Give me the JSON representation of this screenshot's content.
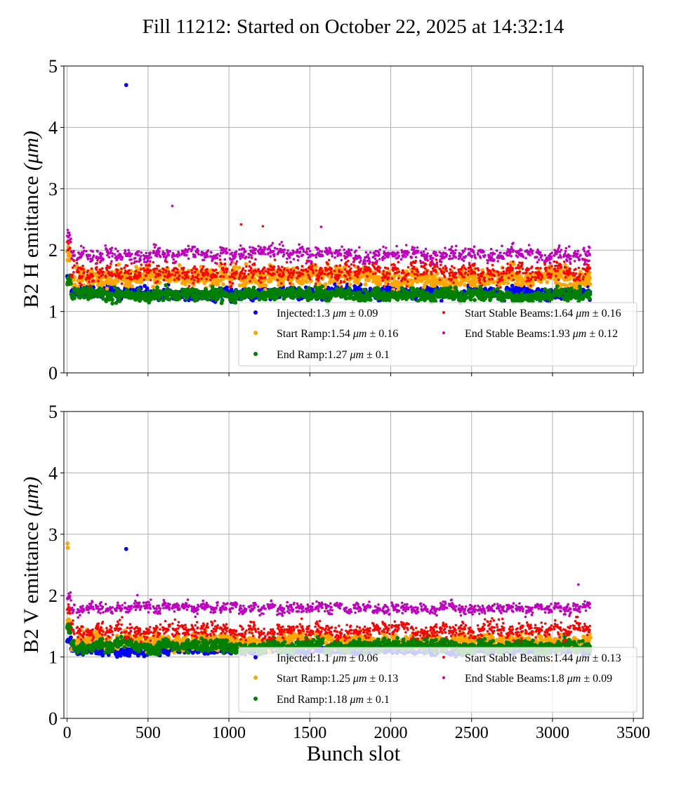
{
  "title": "Fill 11212: Started on October 22, 2025 at 14:32:14",
  "colors": {
    "injected": "#0000ff",
    "start_ramp": "#ffa500",
    "end_ramp": "#008000",
    "start_stable": "#ff0000",
    "end_stable": "#bf00bf",
    "grid": "#b0b0b0"
  },
  "chart_data": [
    {
      "type": "scatter",
      "ylabel": "B2 H emittance",
      "yunit": "(μm)",
      "xlabel": "",
      "xlim": [
        -20,
        3560
      ],
      "ylim": [
        0,
        5
      ],
      "xticks": [
        0,
        500,
        1000,
        1500,
        2000,
        2500,
        3000,
        3500
      ],
      "yticks": [
        0,
        1,
        2,
        3,
        4,
        5
      ],
      "show_xticklabels": false,
      "grid": true,
      "legend_placement": "lower-right",
      "legend_columns": 2,
      "series": [
        {
          "name": "Injected:1.3 μm ± 0.09",
          "color_key": "injected",
          "mean": 1.3,
          "std": 0.09,
          "marker": "large",
          "outliers": [
            {
              "x": 365,
              "y": 4.69
            }
          ]
        },
        {
          "name": "Start Ramp:1.54 μm ± 0.16",
          "color_key": "start_ramp",
          "mean": 1.54,
          "std": 0.16,
          "marker": "large",
          "outliers": []
        },
        {
          "name": "End Ramp:1.27 μm ± 0.1",
          "color_key": "end_ramp",
          "mean": 1.27,
          "std": 0.1,
          "marker": "large",
          "outliers": []
        },
        {
          "name": "Start Stable Beams:1.64 μm ± 0.16",
          "color_key": "start_stable",
          "mean": 1.64,
          "std": 0.16,
          "marker": "small",
          "outliers": [
            {
              "x": 1075,
              "y": 2.42
            },
            {
              "x": 1210,
              "y": 2.39
            }
          ]
        },
        {
          "name": "End Stable Beams:1.93 μm ± 0.12",
          "color_key": "end_stable",
          "mean": 1.93,
          "std": 0.12,
          "marker": "small",
          "outliers": [
            {
              "x": 650,
              "y": 2.72
            },
            {
              "x": 1570,
              "y": 2.38
            }
          ]
        }
      ]
    },
    {
      "type": "scatter",
      "ylabel": "B2 V emittance",
      "yunit": "(μm)",
      "xlabel": "Bunch slot",
      "xlim": [
        -20,
        3560
      ],
      "ylim": [
        0,
        5
      ],
      "xticks": [
        0,
        500,
        1000,
        1500,
        2000,
        2500,
        3000,
        3500
      ],
      "yticks": [
        0,
        1,
        2,
        3,
        4,
        5
      ],
      "show_xticklabels": true,
      "grid": true,
      "legend_placement": "lower-right",
      "legend_columns": 2,
      "series": [
        {
          "name": "Injected:1.1 μm ± 0.06",
          "color_key": "injected",
          "mean": 1.1,
          "std": 0.06,
          "marker": "large",
          "outliers": [
            {
              "x": 365,
              "y": 2.76
            }
          ]
        },
        {
          "name": "Start Ramp:1.25 μm ± 0.13",
          "color_key": "start_ramp",
          "mean": 1.25,
          "std": 0.13,
          "marker": "large",
          "outliers": [
            {
              "x": 2,
              "y": 2.85
            },
            {
              "x": 4,
              "y": 2.78
            }
          ]
        },
        {
          "name": "End Ramp:1.18 μm ± 0.1",
          "color_key": "end_ramp",
          "mean": 1.18,
          "std": 0.1,
          "marker": "large",
          "outliers": []
        },
        {
          "name": "Start Stable Beams:1.44 μm ± 0.13",
          "color_key": "start_stable",
          "mean": 1.44,
          "std": 0.13,
          "marker": "small",
          "outliers": []
        },
        {
          "name": "End Stable Beams:1.8 μm ± 0.09",
          "color_key": "end_stable",
          "mean": 1.8,
          "std": 0.09,
          "marker": "small",
          "outliers": [
            {
              "x": 3160,
              "y": 2.18
            }
          ]
        }
      ]
    }
  ]
}
